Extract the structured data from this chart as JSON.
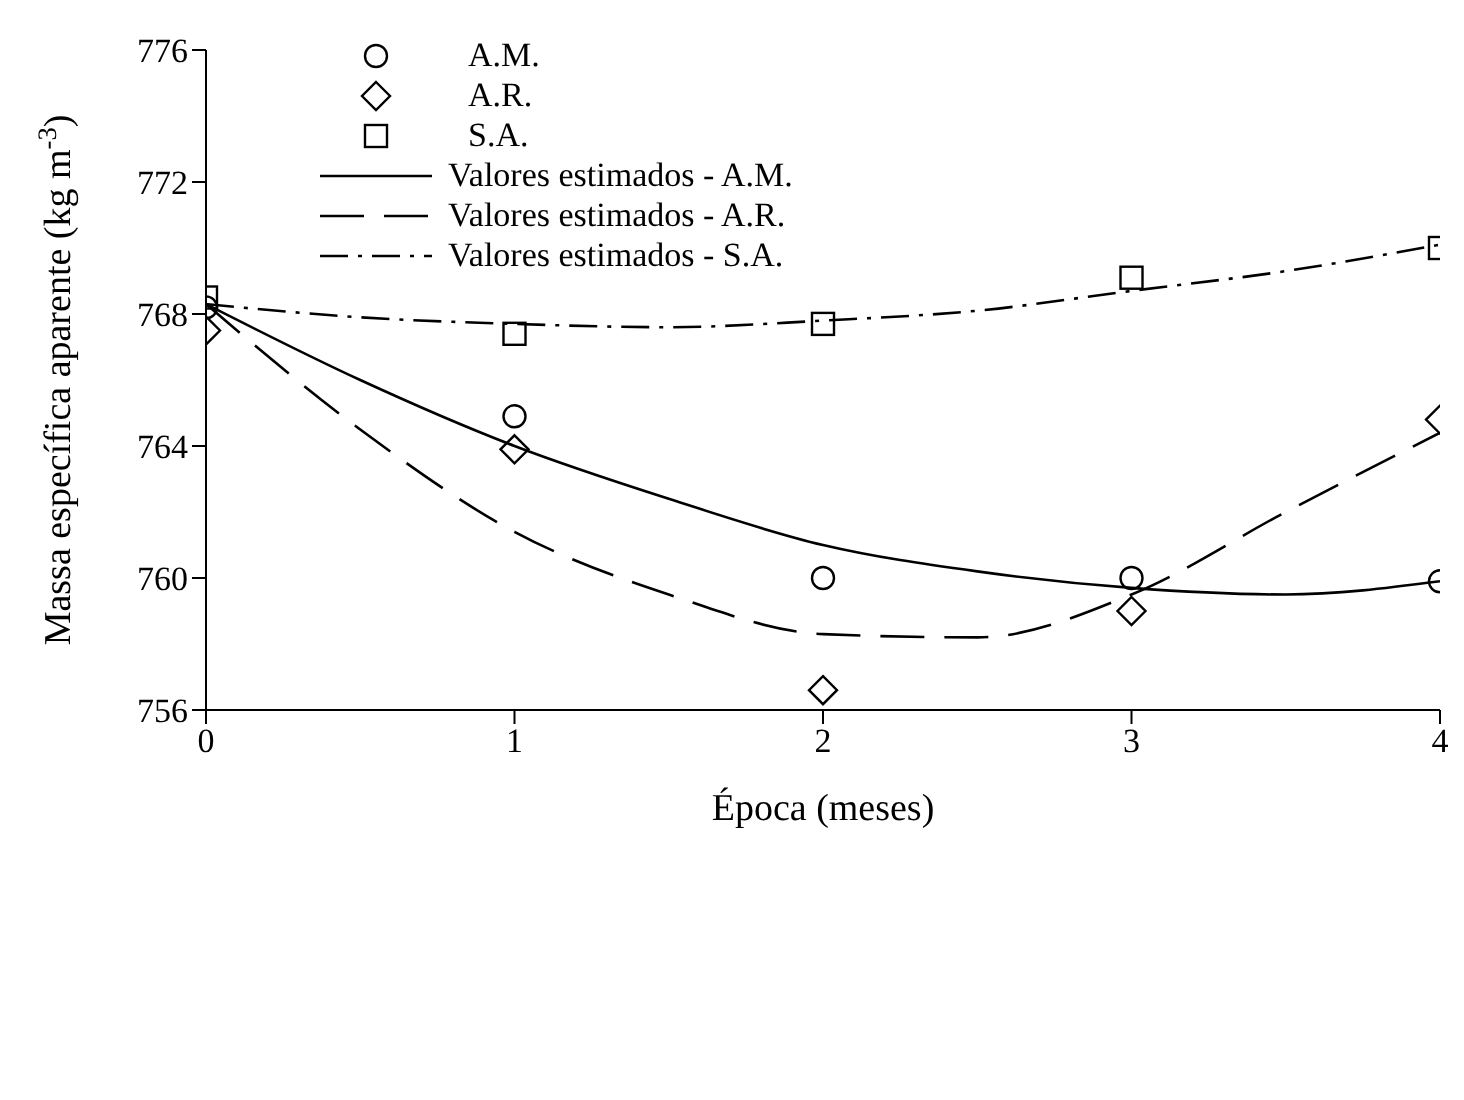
{
  "chart_data": {
    "type": "scatter",
    "xlabel": "Época (meses)",
    "ylabel": "Massa específica aparente (kg m$^{-3}$)",
    "xlim": [
      0,
      4
    ],
    "xticks": [
      0,
      1,
      2,
      3,
      4
    ],
    "ylim": [
      756,
      776
    ],
    "yticks": [
      756,
      760,
      764,
      768,
      772,
      776
    ],
    "legend": "top left",
    "series": [
      {
        "name": "A.M.",
        "marker": "circle",
        "color": "#000000",
        "x": [
          0,
          1,
          2,
          3,
          4
        ],
        "values": [
          768.2,
          764.9,
          760.0,
          760.0,
          759.9
        ]
      },
      {
        "name": "A.R.",
        "marker": "diamond",
        "color": "#000000",
        "x": [
          0,
          1,
          2,
          3,
          4
        ],
        "values": [
          767.5,
          763.9,
          756.6,
          759.0,
          764.8
        ]
      },
      {
        "name": "S.A.",
        "marker": "square",
        "color": "#000000",
        "x": [
          0,
          1,
          2,
          3,
          4
        ],
        "values": [
          768.5,
          767.4,
          767.7,
          769.1,
          770.0
        ]
      },
      {
        "name": "Valores estimados - A.M.",
        "type": "line",
        "line_style": "solid",
        "color": "#000000",
        "x": [
          0,
          0.5,
          1,
          1.5,
          2,
          2.5,
          3,
          3.5,
          4
        ],
        "values": [
          768.3,
          766.0,
          764.0,
          762.4,
          761.0,
          760.2,
          759.7,
          759.5,
          759.9
        ]
      },
      {
        "name": "Valores estimados - A.R.",
        "type": "line",
        "line_style": "dashed",
        "color": "#000000",
        "x": [
          0,
          0.5,
          1,
          1.5,
          2,
          2.5,
          3,
          3.5,
          4
        ],
        "values": [
          768.3,
          764.5,
          761.4,
          759.5,
          758.3,
          758.2,
          759.5,
          762.0,
          764.4
        ]
      },
      {
        "name": "Valores estimados - S.A.",
        "type": "line",
        "line_style": "dashdot",
        "color": "#000000",
        "x": [
          0,
          0.5,
          1,
          1.5,
          2,
          2.5,
          3,
          3.5,
          4
        ],
        "values": [
          768.3,
          767.9,
          767.7,
          767.6,
          767.8,
          768.1,
          768.7,
          769.3,
          770.1
        ]
      }
    ]
  }
}
